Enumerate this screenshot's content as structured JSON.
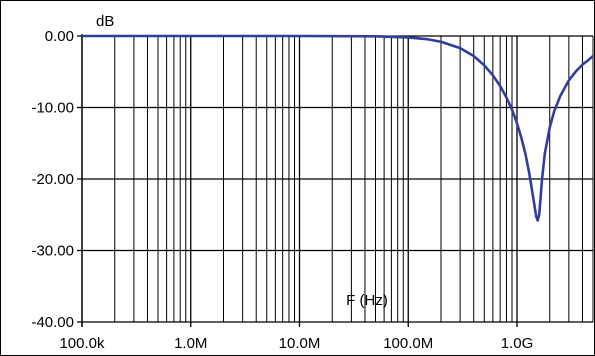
{
  "chart_data": {
    "type": "line",
    "title": "",
    "ylabel": "dB",
    "xlabel": "F (Hz)",
    "xscale": "log",
    "xlim": [
      100000,
      5000000000
    ],
    "ylim": [
      -40,
      0
    ],
    "grid": true,
    "x_ticks": [
      {
        "value": 100000,
        "label": "100.0k"
      },
      {
        "value": 1000000,
        "label": "1.0M"
      },
      {
        "value": 10000000,
        "label": "10.0M"
      },
      {
        "value": 100000000,
        "label": "100.0M"
      },
      {
        "value": 1000000000,
        "label": "1.0G"
      }
    ],
    "y_ticks": [
      {
        "value": 0,
        "label": "0.00"
      },
      {
        "value": -10,
        "label": "-10.00"
      },
      {
        "value": -20,
        "label": "-20.00"
      },
      {
        "value": -30,
        "label": "-30.00"
      },
      {
        "value": -40,
        "label": "-40.00"
      }
    ],
    "colors": {
      "series": "#2e3f9e",
      "grid": "#000000"
    },
    "series": [
      {
        "x": [
          100000,
          1000000,
          10000000,
          50000000,
          100000000,
          150000000,
          200000000,
          300000000,
          400000000,
          500000000,
          600000000,
          700000000,
          800000000,
          900000000,
          1000000000,
          1100000000,
          1200000000,
          1300000000,
          1400000000,
          1500000000,
          1550000000,
          1600000000,
          1650000000,
          1700000000,
          1800000000,
          2000000000,
          2200000000,
          2500000000,
          3000000000,
          3500000000,
          4000000000,
          4500000000,
          5000000000
        ],
        "y": [
          0,
          0,
          0,
          -0.05,
          -0.2,
          -0.45,
          -0.8,
          -1.7,
          -2.8,
          -4.1,
          -5.5,
          -7.0,
          -8.6,
          -10.3,
          -12.2,
          -14.3,
          -16.6,
          -19.3,
          -22.3,
          -25.2,
          -25.8,
          -25.0,
          -22.5,
          -20.0,
          -16.5,
          -12.8,
          -10.5,
          -8.4,
          -6.2,
          -4.9,
          -4.0,
          -3.4,
          -2.8
        ]
      }
    ]
  }
}
